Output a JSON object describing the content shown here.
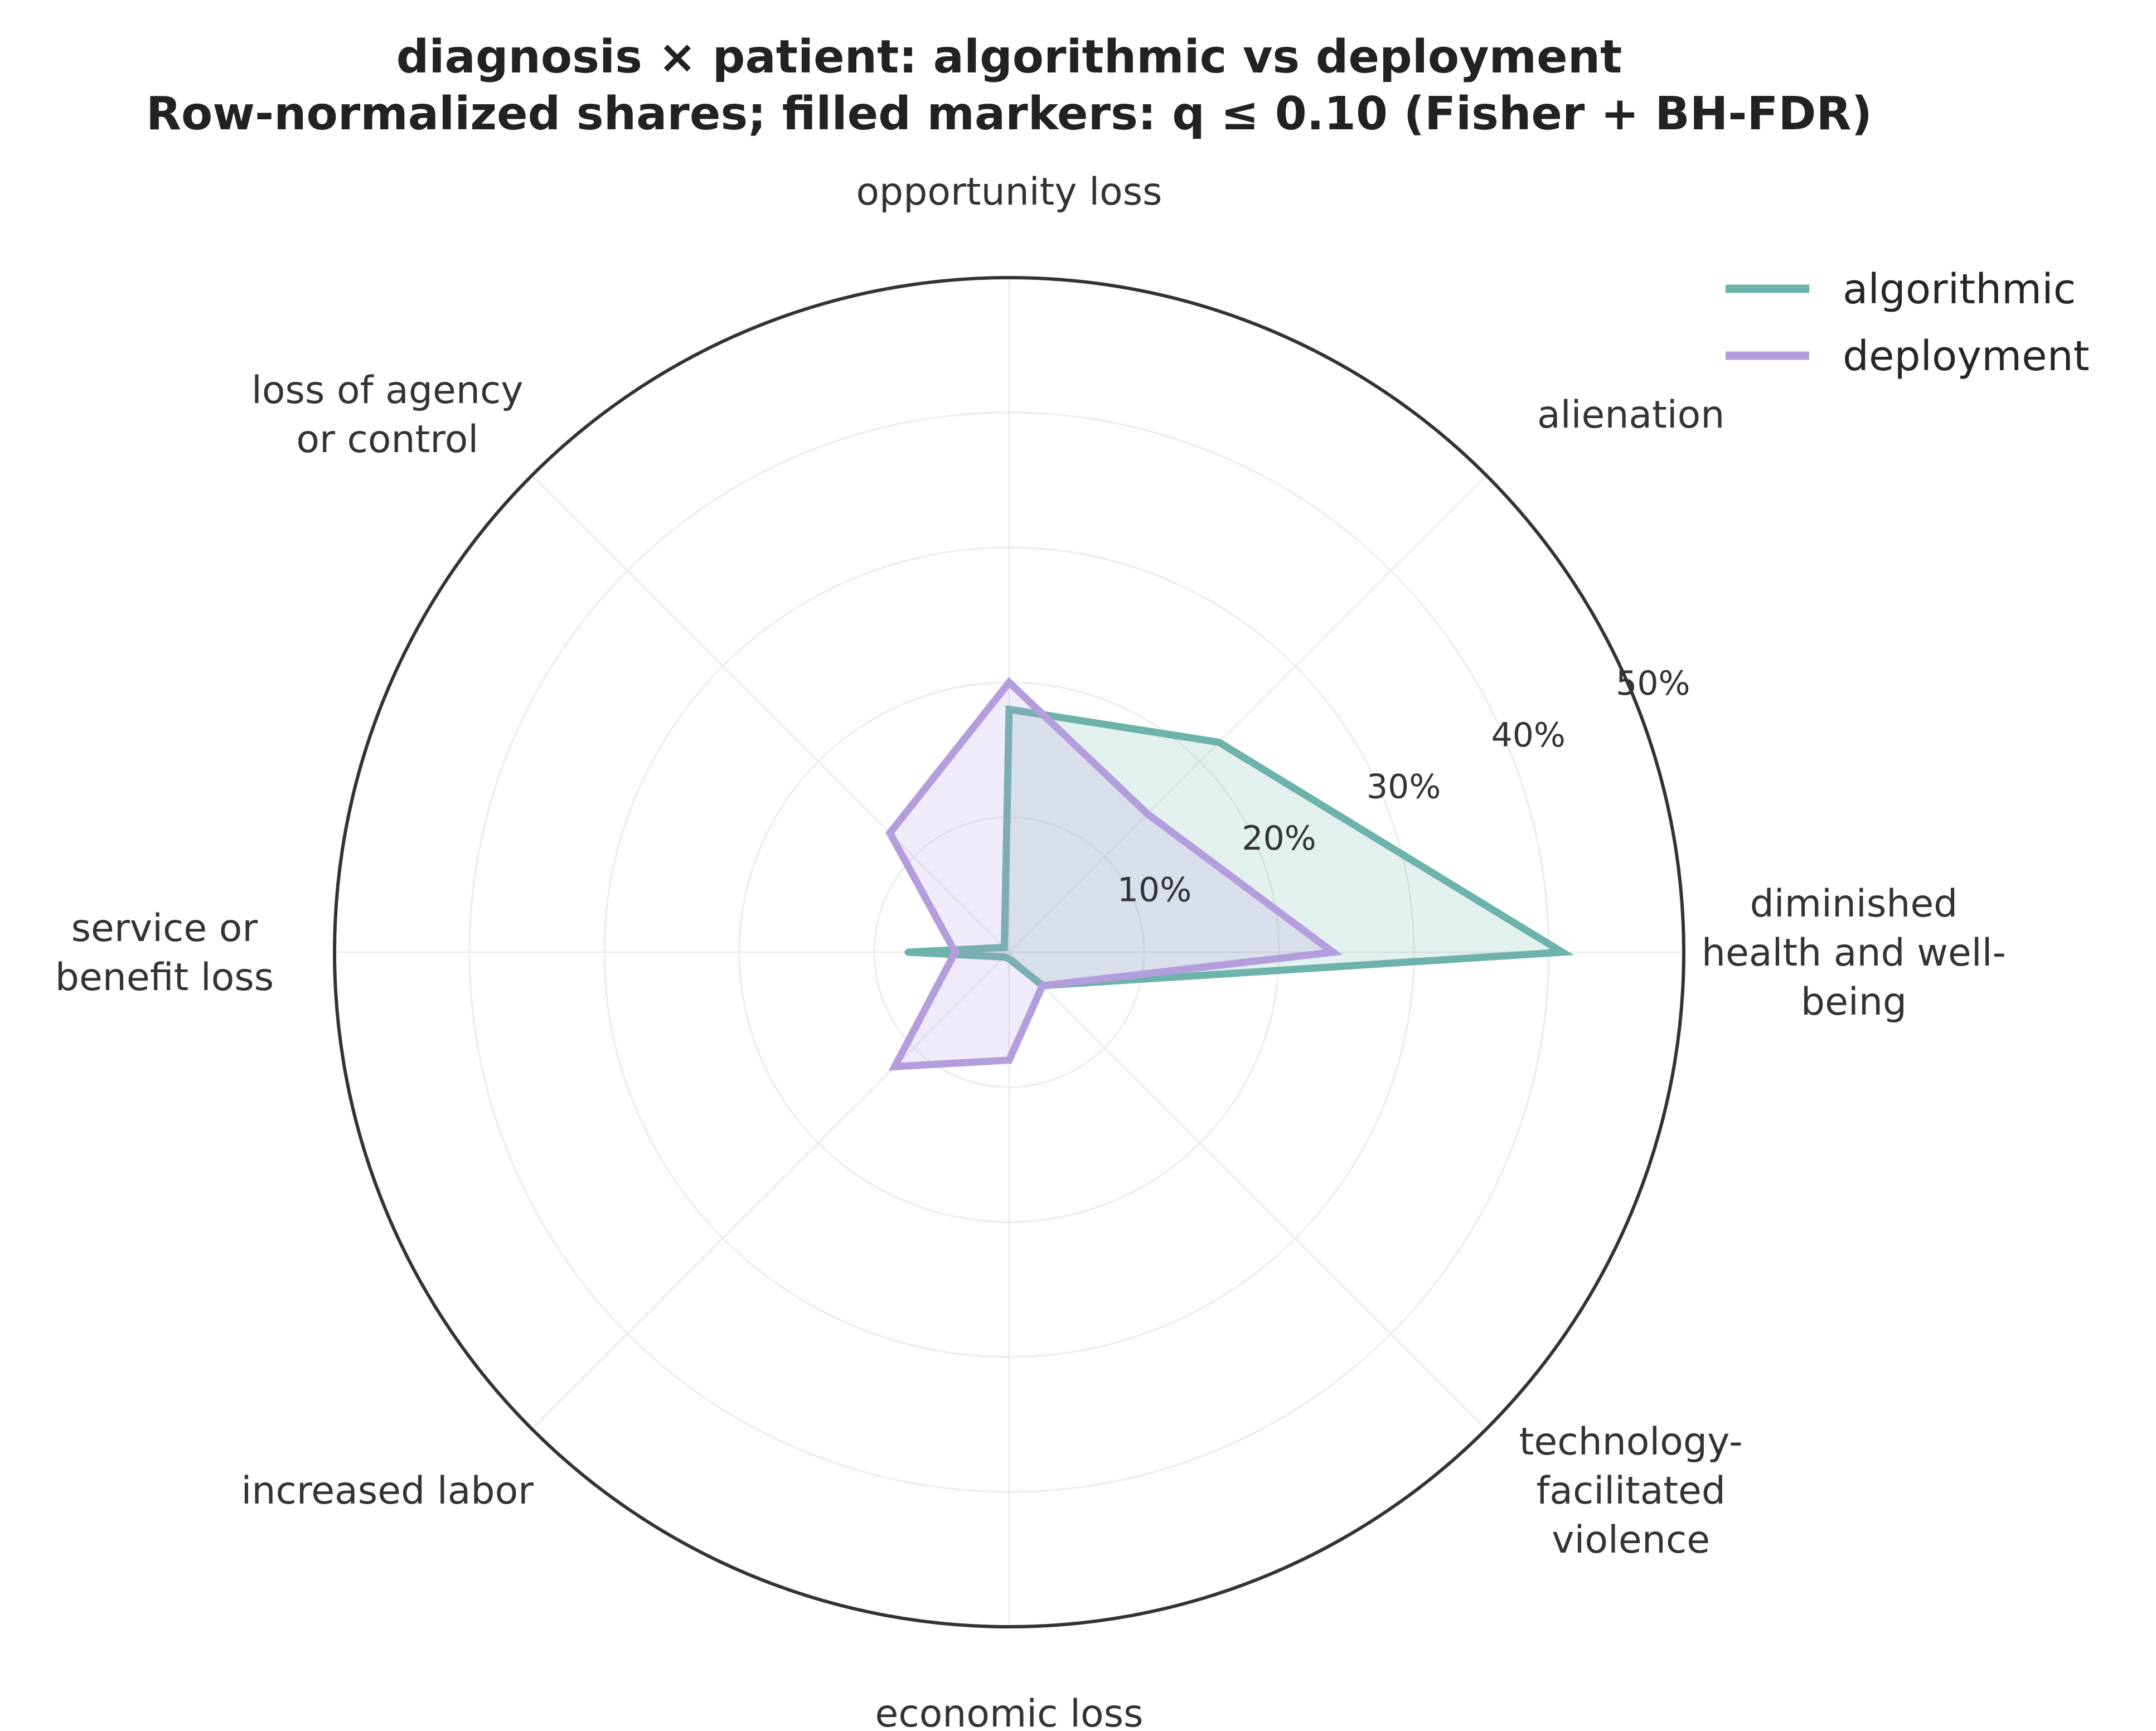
{
  "chart_data": {
    "type": "radar",
    "title_lines": [
      "diagnosis × patient: algorithmic vs deployment",
      "Row-normalized shares; filled markers: q ≤ 0.10 (Fisher + BH-FDR)"
    ],
    "categories": [
      [
        "diminished",
        "health and well-",
        "being"
      ],
      [
        "alienation"
      ],
      [
        "opportunity loss"
      ],
      [
        "loss of agency",
        "or control"
      ],
      [
        "service or",
        "benefit loss"
      ],
      [
        "increased labor"
      ],
      [
        "economic loss"
      ],
      [
        "technology-",
        "facilitated",
        "violence"
      ]
    ],
    "ticks": [
      10,
      20,
      30,
      40,
      50
    ],
    "tick_labels": [
      "10%",
      "20%",
      "30%",
      "40%",
      "50%"
    ],
    "rlim": [
      0,
      50
    ],
    "unit": "%",
    "legend_position": "top-right",
    "grid": true,
    "series": [
      {
        "name": "algorithmic",
        "color": "#6db3ab",
        "values": [
          41,
          22,
          18,
          0.5,
          7.5,
          0.5,
          0.5,
          3.5
        ]
      },
      {
        "name": "deployment",
        "color": "#b49ddc",
        "values": [
          24,
          14.5,
          20,
          12.5,
          4,
          12,
          8,
          3.5
        ]
      }
    ]
  }
}
